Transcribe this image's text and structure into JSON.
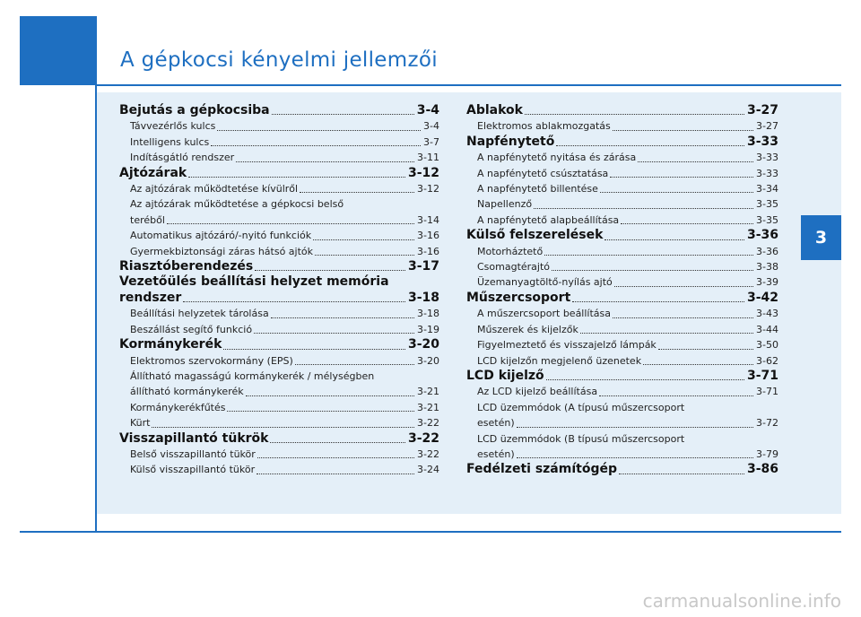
{
  "header": {
    "title": "A gépkocsi kényelmi jellemzői",
    "tab": "3"
  },
  "columns": [
    [
      {
        "title": "Bejutás a gépkocsiba",
        "page": "3-4",
        "items": [
          {
            "title": "Távvezérlős kulcs",
            "page": "3-4"
          },
          {
            "title": "Intelligens kulcs",
            "page": "3-7"
          },
          {
            "title": "Indításgátló rendszer",
            "page": "3-11"
          }
        ]
      },
      {
        "title": "Ajtózárak",
        "page": "3-12",
        "items": [
          {
            "title": "Az ajtózárak működtetése kívülről",
            "page": "3-12"
          },
          {
            "title": [
              "Az ajtózárak működtetése a gépkocsi belső",
              "teréből"
            ],
            "page": "3-14"
          },
          {
            "title": "Automatikus ajtózáró/-nyitó funkciók",
            "page": "3-16"
          },
          {
            "title": "Gyermekbiztonsági záras hátsó ajtók",
            "page": "3-16"
          }
        ]
      },
      {
        "title": "Riasztóberendezés",
        "page": "3-17",
        "items": []
      },
      {
        "title": [
          "Vezetőülés beállítási helyzet memória",
          "rendszer"
        ],
        "page": "3-18",
        "items": [
          {
            "title": "Beállítási helyzetek tárolása",
            "page": "3-18"
          },
          {
            "title": "Beszállást segítő funkció",
            "page": "3-19"
          }
        ]
      },
      {
        "title": "Kormánykerék",
        "page": "3-20",
        "items": [
          {
            "title": "Elektromos szervokormány (EPS)",
            "page": "3-20"
          },
          {
            "title": [
              "Állítható magasságú kormánykerék / mélységben",
              "állítható kormánykerék"
            ],
            "page": "3-21"
          },
          {
            "title": "Kormánykerékfűtés",
            "page": "3-21"
          },
          {
            "title": "Kürt",
            "page": "3-22"
          }
        ]
      },
      {
        "title": "Visszapillantó tükrök",
        "page": "3-22",
        "items": [
          {
            "title": "Belső visszapillantó tükör",
            "page": "3-22"
          },
          {
            "title": "Külső visszapillantó tükör",
            "page": "3-24"
          }
        ]
      }
    ],
    [
      {
        "title": "Ablakok",
        "page": "3-27",
        "items": [
          {
            "title": "Elektromos ablakmozgatás",
            "page": "3-27"
          }
        ]
      },
      {
        "title": "Napfénytető",
        "page": "3-33",
        "items": [
          {
            "title": "A napfénytető nyitása és zárása",
            "page": "3-33"
          },
          {
            "title": "A napfénytető csúsztatása",
            "page": "3-33"
          },
          {
            "title": "A napfénytető billentése",
            "page": "3-34"
          },
          {
            "title": "Napellenző",
            "page": "3-35"
          },
          {
            "title": "A napfénytető alapbeállítása",
            "page": "3-35"
          }
        ]
      },
      {
        "title": "Külső felszerelések",
        "page": "3-36",
        "items": [
          {
            "title": "Motorháztető",
            "page": "3-36"
          },
          {
            "title": "Csomagtérajtó",
            "page": "3-38"
          },
          {
            "title": "Üzemanyagtöltő-nyílás ajtó",
            "page": "3-39"
          }
        ]
      },
      {
        "title": "Műszercsoport",
        "page": "3-42",
        "items": [
          {
            "title": "A műszercsoport beállítása",
            "page": "3-43"
          },
          {
            "title": "Műszerek és kijelzők",
            "page": "3-44"
          },
          {
            "title": "Figyelmeztető és visszajelző lámpák",
            "page": "3-50"
          },
          {
            "title": "LCD kijelzőn megjelenő üzenetek",
            "page": "3-62"
          }
        ]
      },
      {
        "title": "LCD kijelző",
        "page": "3-71",
        "items": [
          {
            "title": "Az LCD kijelző beállítása",
            "page": "3-71"
          },
          {
            "title": [
              "LCD üzemmódok (A típusú műszercsoport",
              "esetén)"
            ],
            "page": "3-72"
          },
          {
            "title": [
              "LCD üzemmódok (B típusú műszercsoport",
              "esetén)"
            ],
            "page": "3-79"
          }
        ]
      },
      {
        "title": "Fedélzeti számítógép",
        "page": "3-86",
        "items": []
      }
    ]
  ],
  "watermark": "carmanualsonline.info"
}
